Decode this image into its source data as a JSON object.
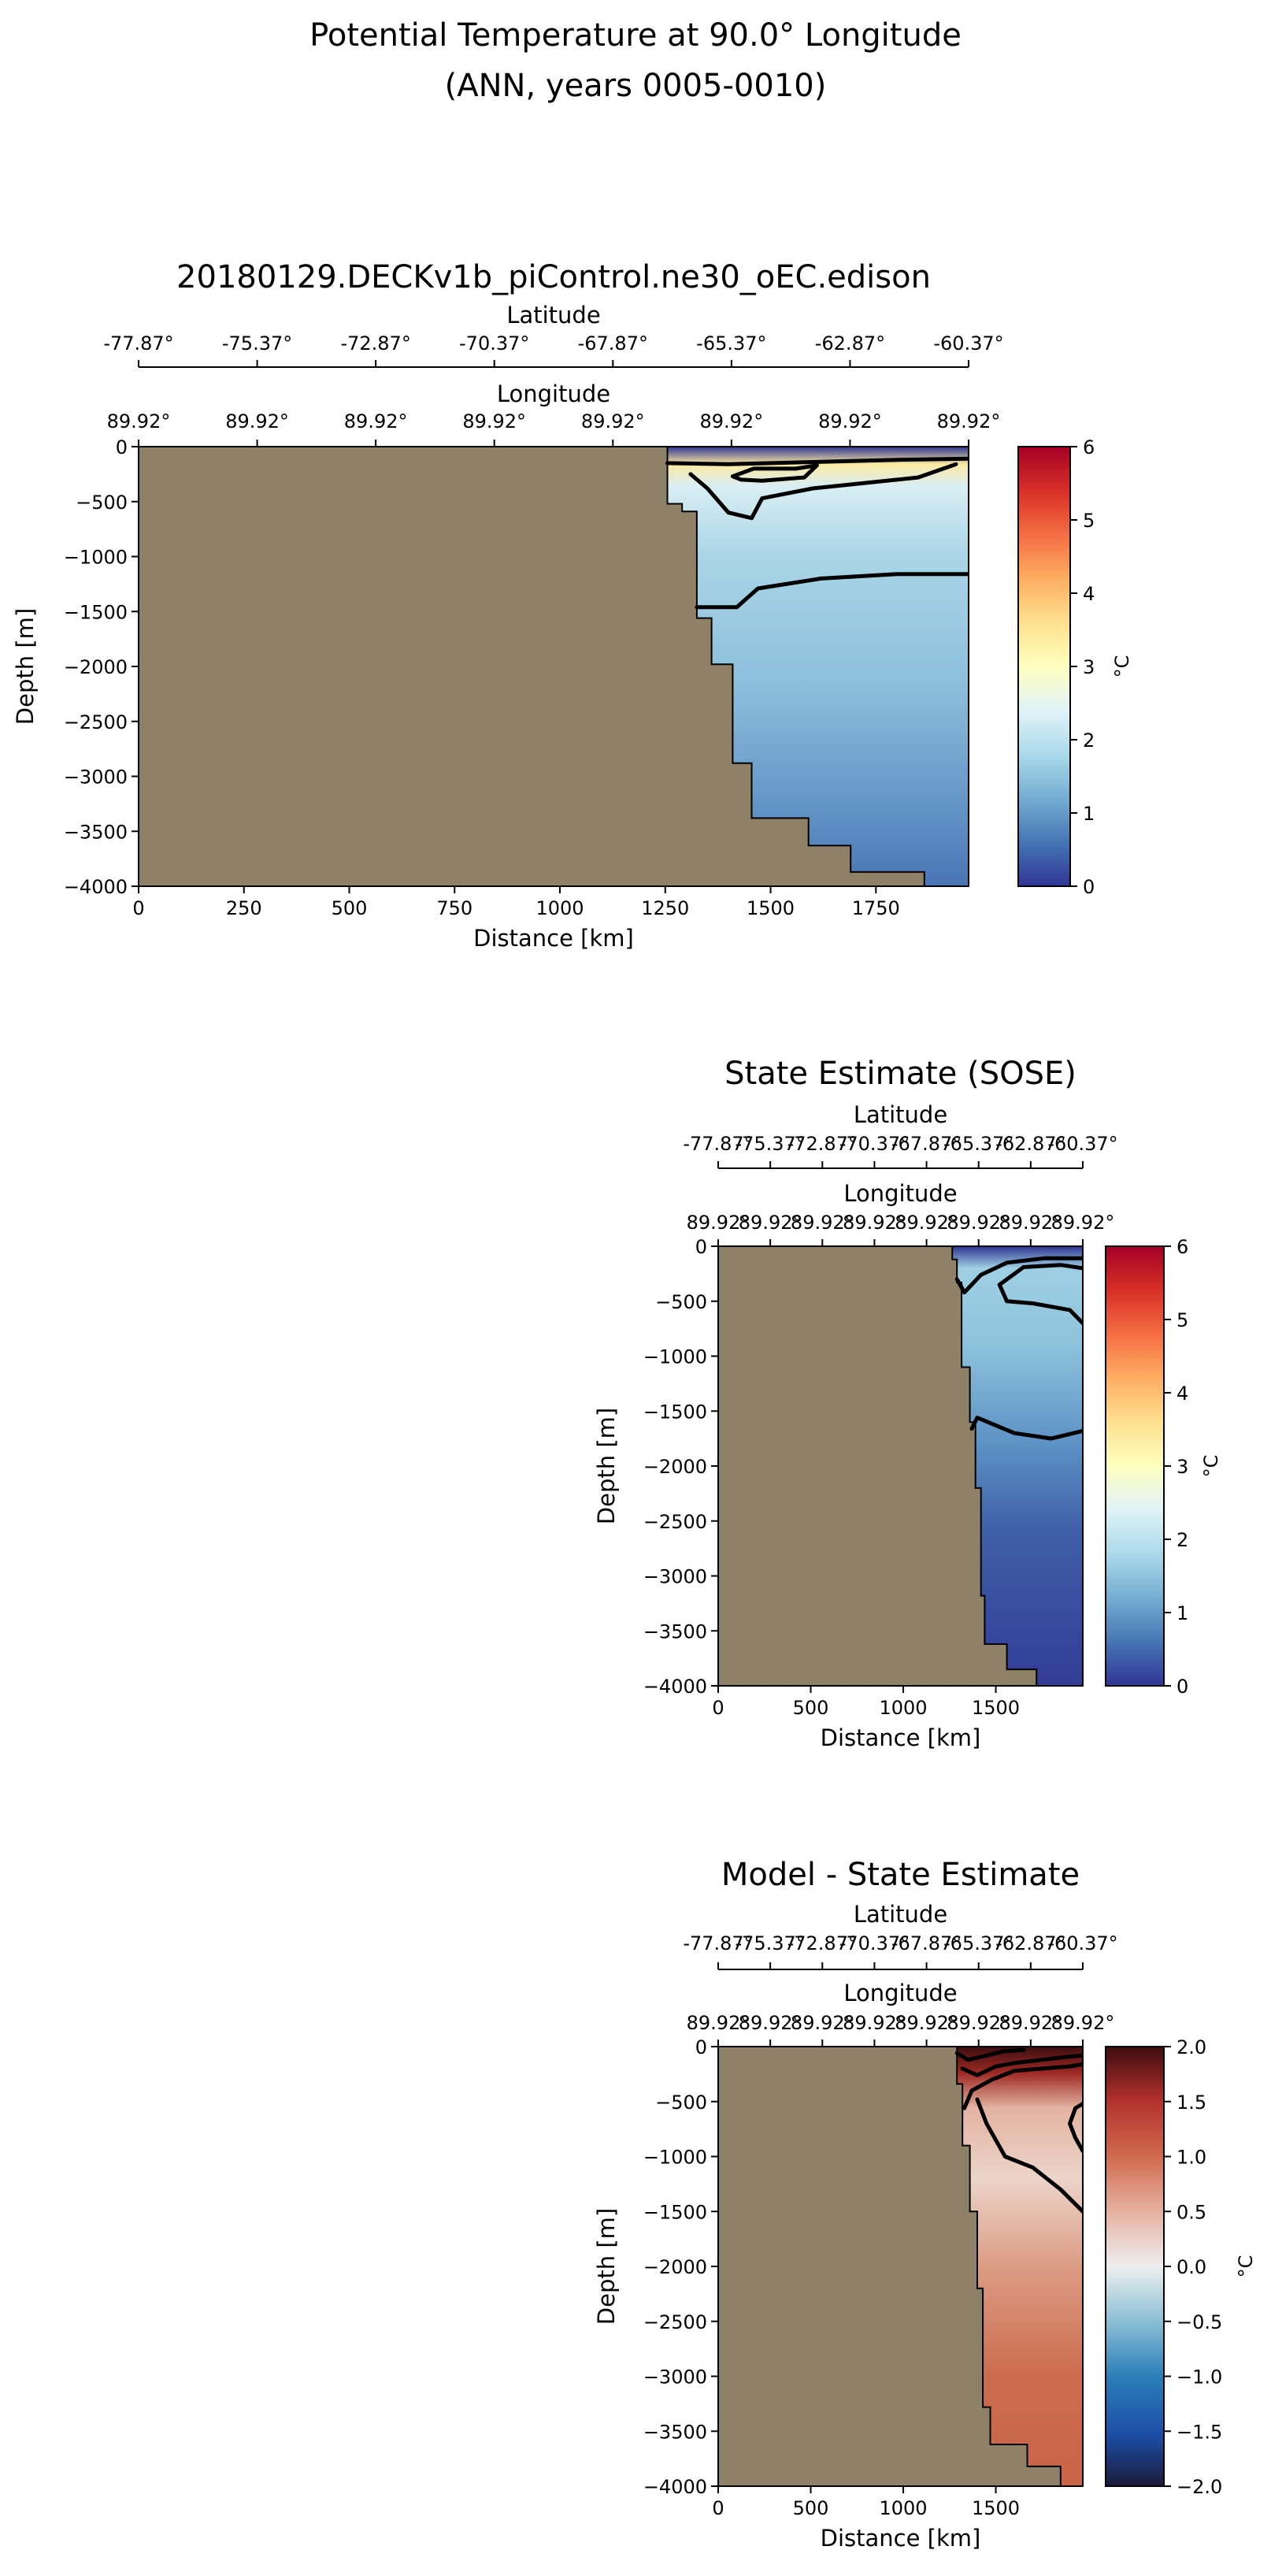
{
  "figure": {
    "title_line1": "Potential Temperature at 90.0° Longitude",
    "title_line2": "(ANN, years 0005-0010)"
  },
  "colors": {
    "land": "#8f8068",
    "black": "#000000"
  },
  "chart_data": [
    {
      "type": "heatmap",
      "title": "20180129.DECKv1b_piControl.ne30_oEC.edison",
      "xlabel": "Distance [km]",
      "ylabel": "Depth [m]",
      "xlim": [
        0,
        1970
      ],
      "ylim": [
        -4000,
        0
      ],
      "xticks": [
        "0",
        "250",
        "500",
        "750",
        "1000",
        "1250",
        "1500",
        "1750"
      ],
      "xtick_values": [
        0,
        250,
        500,
        750,
        1000,
        1250,
        1500,
        1750
      ],
      "yticks": [
        "0",
        "−500",
        "−1000",
        "−1500",
        "−2000",
        "−2500",
        "−3000",
        "−3500",
        "−4000"
      ],
      "ytick_values": [
        0,
        -500,
        -1000,
        -1500,
        -2000,
        -2500,
        -3000,
        -3500,
        -4000
      ],
      "lat_axis": {
        "label": "Latitude",
        "ticks": [
          "-77.87°",
          "-75.37°",
          "-72.87°",
          "-70.37°",
          "-67.87°",
          "-65.37°",
          "-62.87°",
          "-60.37°"
        ]
      },
      "lon_axis": {
        "label": "Longitude",
        "ticks": [
          "89.92°",
          "89.92°",
          "89.92°",
          "89.92°",
          "89.92°",
          "89.92°",
          "89.92°",
          "89.92°"
        ]
      },
      "colorbar": {
        "label": "°C",
        "vmin": 0,
        "vmax": 6,
        "ticks": [
          "0",
          "1",
          "2",
          "3",
          "4",
          "5",
          "6"
        ],
        "tick_values": [
          0,
          1,
          2,
          3,
          4,
          5,
          6
        ],
        "colormap": "RdYlBu_r"
      },
      "bathymetry": [
        [
          1255,
          0
        ],
        [
          1255,
          -520
        ],
        [
          1290,
          -520
        ],
        [
          1290,
          -590
        ],
        [
          1325,
          -590
        ],
        [
          1325,
          -1560
        ],
        [
          1360,
          -1560
        ],
        [
          1360,
          -1980
        ],
        [
          1410,
          -1980
        ],
        [
          1410,
          -2880
        ],
        [
          1455,
          -2880
        ],
        [
          1455,
          -3380
        ],
        [
          1590,
          -3380
        ],
        [
          1590,
          -3630
        ],
        [
          1690,
          -3630
        ],
        [
          1690,
          -3870
        ],
        [
          1865,
          -3870
        ],
        [
          1865,
          -4000
        ]
      ],
      "contours": [
        {
          "level": 0,
          "points": [
            [
              1255,
              -150
            ],
            [
              1400,
              -160
            ],
            [
              1600,
              -140
            ],
            [
              1800,
              -120
            ],
            [
              1970,
              -110
            ]
          ]
        },
        {
          "level": 1,
          "points": [
            [
              1325,
              -1460
            ],
            [
              1420,
              -1460
            ],
            [
              1470,
              -1290
            ],
            [
              1620,
              -1200
            ],
            [
              1800,
              -1160
            ],
            [
              1970,
              -1160
            ]
          ]
        },
        {
          "level": 2,
          "points": [
            [
              1310,
              -250
            ],
            [
              1350,
              -380
            ],
            [
              1400,
              -600
            ],
            [
              1455,
              -650
            ],
            [
              1480,
              -470
            ],
            [
              1600,
              -380
            ],
            [
              1850,
              -280
            ],
            [
              1940,
              -160
            ]
          ]
        },
        {
          "level": 3,
          "points": [
            [
              1410,
              -270
            ],
            [
              1460,
              -200
            ],
            [
              1560,
              -200
            ],
            [
              1610,
              -170
            ],
            [
              1580,
              -280
            ],
            [
              1480,
              -310
            ],
            [
              1430,
              -300
            ],
            [
              1410,
              -270
            ]
          ]
        }
      ],
      "field": {
        "surface_max": 3.8,
        "mid": 1.6,
        "deep": 0.6
      }
    },
    {
      "type": "heatmap",
      "title": "State Estimate (SOSE)",
      "xlabel": "Distance [km]",
      "ylabel": "Depth [m]",
      "xlim": [
        0,
        1970
      ],
      "ylim": [
        -4000,
        0
      ],
      "xticks": [
        "0",
        "500",
        "1000",
        "1500"
      ],
      "xtick_values": [
        0,
        500,
        1000,
        1500
      ],
      "yticks": [
        "0",
        "−500",
        "−1000",
        "−1500",
        "−2000",
        "−2500",
        "−3000",
        "−3500",
        "−4000"
      ],
      "ytick_values": [
        0,
        -500,
        -1000,
        -1500,
        -2000,
        -2500,
        -3000,
        -3500,
        -4000
      ],
      "lat_axis": {
        "label": "Latitude",
        "ticks": [
          "-77.87°",
          "-75.37°",
          "-72.87°",
          "-70.37°",
          "-67.87°",
          "-65.37°",
          "-62.87°",
          "-60.37°"
        ]
      },
      "lon_axis": {
        "label": "Longitude",
        "ticks": [
          "89.92°",
          "89.92°",
          "89.92°",
          "89.92°",
          "89.92°",
          "89.92°",
          "89.92°",
          "89.92°"
        ]
      },
      "colorbar": {
        "label": "°C",
        "vmin": 0,
        "vmax": 6,
        "ticks": [
          "0",
          "1",
          "2",
          "3",
          "4",
          "5",
          "6"
        ],
        "tick_values": [
          0,
          1,
          2,
          3,
          4,
          5,
          6
        ],
        "colormap": "RdYlBu_r"
      },
      "bathymetry": [
        [
          1265,
          0
        ],
        [
          1265,
          -120
        ],
        [
          1290,
          -120
        ],
        [
          1290,
          -330
        ],
        [
          1315,
          -330
        ],
        [
          1315,
          -1100
        ],
        [
          1360,
          -1100
        ],
        [
          1360,
          -1600
        ],
        [
          1390,
          -1600
        ],
        [
          1390,
          -2200
        ],
        [
          1420,
          -2200
        ],
        [
          1420,
          -3180
        ],
        [
          1440,
          -3180
        ],
        [
          1440,
          -3620
        ],
        [
          1560,
          -3620
        ],
        [
          1560,
          -3850
        ],
        [
          1720,
          -3850
        ],
        [
          1720,
          -4000
        ]
      ],
      "contours": [
        {
          "level": 0,
          "points": [
            [
              1290,
              -300
            ],
            [
              1330,
              -420
            ],
            [
              1420,
              -260
            ],
            [
              1560,
              -150
            ],
            [
              1760,
              -110
            ],
            [
              1970,
              -110
            ]
          ]
        },
        {
          "level": 1,
          "points": [
            [
              1370,
              -1660
            ],
            [
              1400,
              -1560
            ],
            [
              1600,
              -1700
            ],
            [
              1800,
              -1750
            ],
            [
              1970,
              -1680
            ]
          ]
        },
        {
          "level": 2,
          "points": [
            [
              1970,
              -700
            ],
            [
              1900,
              -580
            ],
            [
              1700,
              -520
            ],
            [
              1560,
              -500
            ],
            [
              1520,
              -350
            ],
            [
              1650,
              -190
            ],
            [
              1850,
              -170
            ],
            [
              1970,
              -200
            ]
          ]
        }
      ],
      "field": {
        "surface_max": 1.6,
        "mid": 1.3,
        "deep": 0.4
      }
    },
    {
      "type": "heatmap",
      "title": "Model - State Estimate",
      "xlabel": "Distance [km]",
      "ylabel": "Depth [m]",
      "xlim": [
        0,
        1970
      ],
      "ylim": [
        -4000,
        0
      ],
      "xticks": [
        "0",
        "500",
        "1000",
        "1500"
      ],
      "xtick_values": [
        0,
        500,
        1000,
        1500
      ],
      "yticks": [
        "0",
        "−500",
        "−1000",
        "−1500",
        "−2000",
        "−2500",
        "−3000",
        "−3500",
        "−4000"
      ],
      "ytick_values": [
        0,
        -500,
        -1000,
        -1500,
        -2000,
        -2500,
        -3000,
        -3500,
        -4000
      ],
      "lat_axis": {
        "label": "Latitude",
        "ticks": [
          "-77.87°",
          "-75.37°",
          "-72.87°",
          "-70.37°",
          "-67.87°",
          "-65.37°",
          "-62.87°",
          "-60.37°"
        ]
      },
      "lon_axis": {
        "label": "Longitude",
        "ticks": [
          "89.92°",
          "89.92°",
          "89.92°",
          "89.92°",
          "89.92°",
          "89.92°",
          "89.92°",
          "89.92°"
        ]
      },
      "colorbar": {
        "label": "°C",
        "vmin": -2,
        "vmax": 2,
        "ticks": [
          "−2.0",
          "−1.5",
          "−1.0",
          "−0.5",
          "0.0",
          "0.5",
          "1.0",
          "1.5",
          "2.0"
        ],
        "tick_values": [
          -2,
          -1.5,
          -1,
          -0.5,
          0,
          0.5,
          1,
          1.5,
          2
        ],
        "colormap": "RdBu_r"
      },
      "bathymetry": [
        [
          1290,
          0
        ],
        [
          1290,
          -340
        ],
        [
          1320,
          -340
        ],
        [
          1320,
          -900
        ],
        [
          1360,
          -900
        ],
        [
          1360,
          -1500
        ],
        [
          1400,
          -1500
        ],
        [
          1400,
          -2200
        ],
        [
          1430,
          -2200
        ],
        [
          1430,
          -3280
        ],
        [
          1470,
          -3280
        ],
        [
          1470,
          -3620
        ],
        [
          1670,
          -3620
        ],
        [
          1670,
          -3820
        ],
        [
          1850,
          -3820
        ],
        [
          1850,
          -4000
        ]
      ],
      "contours": [
        {
          "level": 0,
          "points": [
            [
              1290,
              -60
            ],
            [
              1350,
              -120
            ],
            [
              1450,
              -80
            ],
            [
              1550,
              -40
            ],
            [
              1650,
              -30
            ]
          ]
        },
        {
          "level": 0.5,
          "points": [
            [
              1400,
              -480
            ],
            [
              1450,
              -700
            ],
            [
              1550,
              -1000
            ],
            [
              1700,
              -1100
            ],
            [
              1850,
              -1300
            ],
            [
              1970,
              -1500
            ]
          ]
        },
        {
          "level": 1,
          "points": [
            [
              1330,
              -560
            ],
            [
              1370,
              -400
            ],
            [
              1480,
              -300
            ],
            [
              1600,
              -220
            ],
            [
              1750,
              -200
            ],
            [
              1900,
              -180
            ],
            [
              1970,
              -160
            ]
          ]
        },
        {
          "level": 1.5,
          "points": [
            [
              1320,
              -200
            ],
            [
              1400,
              -260
            ],
            [
              1500,
              -180
            ],
            [
              1600,
              -150
            ],
            [
              1750,
              -120
            ],
            [
              1900,
              -90
            ],
            [
              1970,
              -80
            ]
          ]
        },
        {
          "level": 0.5,
          "points": [
            [
              1970,
              -950
            ],
            [
              1930,
              -830
            ],
            [
              1900,
              -700
            ],
            [
              1930,
              -560
            ],
            [
              1970,
              -520
            ]
          ]
        }
      ],
      "field": {
        "surface_max": 2.0,
        "mid": 0.3,
        "deep": 0.9
      }
    }
  ]
}
